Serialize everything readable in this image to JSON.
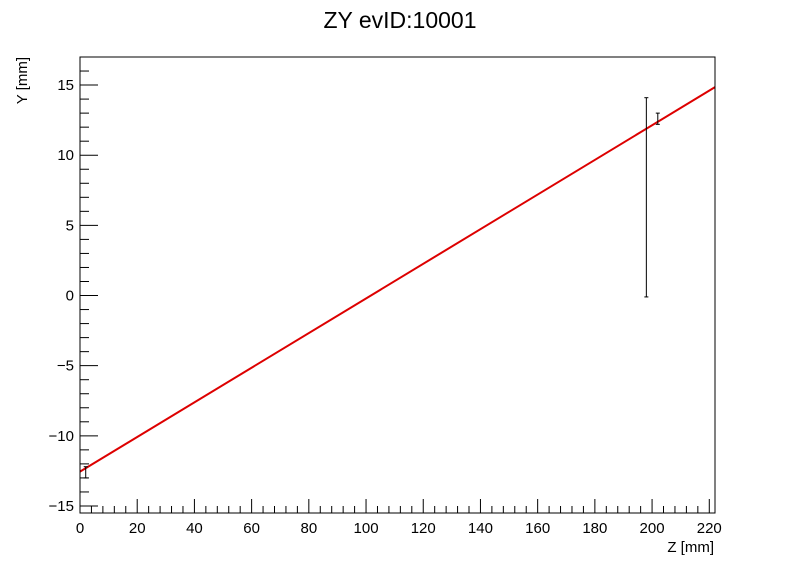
{
  "chart_data": {
    "type": "scatter",
    "title": "ZY evID:10001",
    "xlabel": "Z [mm]",
    "ylabel": "Y [mm]",
    "xlim": [
      0,
      222
    ],
    "ylim": [
      -15.5,
      17
    ],
    "x_ticks": [
      0,
      20,
      40,
      60,
      80,
      100,
      120,
      140,
      160,
      180,
      200,
      220
    ],
    "x_tick_labels": [
      "0",
      "20",
      "40",
      "60",
      "80",
      "100",
      "120",
      "140",
      "160",
      "180",
      "200",
      "220"
    ],
    "y_ticks": [
      -15,
      -10,
      -5,
      0,
      5,
      10,
      15
    ],
    "y_tick_labels": [
      "−15",
      "−10",
      "−5",
      "0",
      "5",
      "10",
      "15"
    ],
    "grid": false,
    "points": [
      {
        "x": 2,
        "y": -12.6,
        "y_err_low": 0.4,
        "y_err_high": 0.4,
        "color": "#000000"
      },
      {
        "x": 198,
        "y": 7.0,
        "y_err_low": 7.1,
        "y_err_high": 7.1,
        "color": "#000000"
      },
      {
        "x": 202,
        "y": 12.6,
        "y_err_low": 0.4,
        "y_err_high": 0.4,
        "color": "#000000"
      }
    ],
    "fit_line": {
      "x": [
        0,
        222
      ],
      "y": [
        -12.55,
        14.85
      ],
      "color": "#dd0000"
    }
  }
}
